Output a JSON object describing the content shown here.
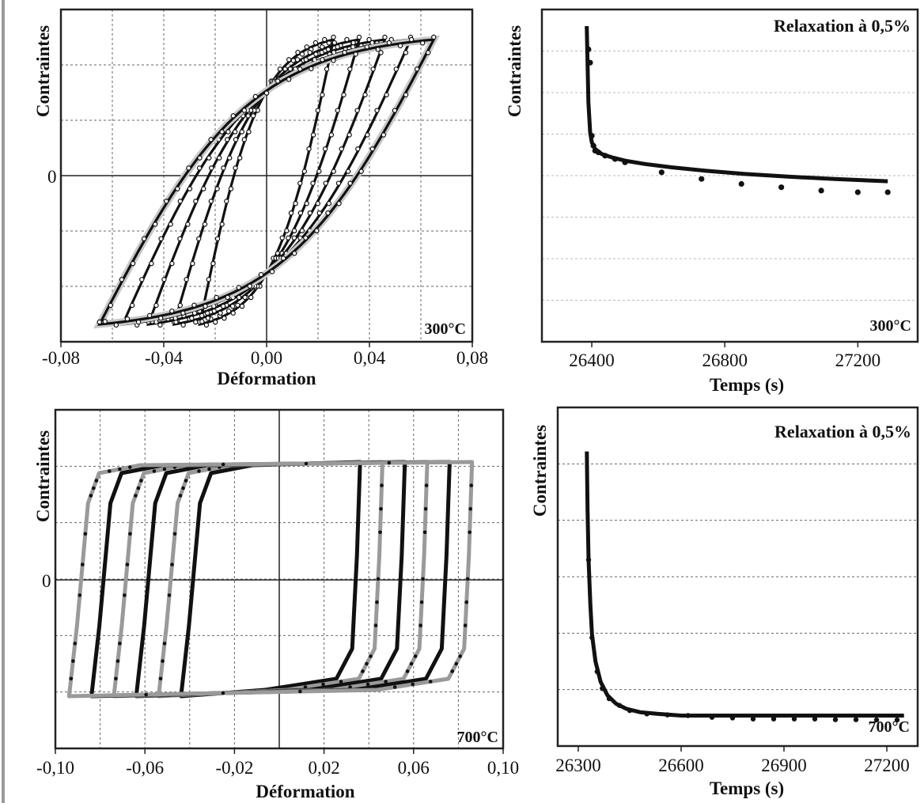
{
  "chart_data": [
    {
      "id": "loops-300",
      "type": "line",
      "xlabel": "Déformation",
      "ylabel": "Contraintes",
      "xlim": [
        -0.08,
        0.08
      ],
      "x_ticks": [
        "-0,08",
        "-0,04",
        "0,00",
        "0,04",
        "0,08"
      ],
      "y_tick_labels": [
        "0"
      ],
      "annotation": "300°C",
      "grid": true,
      "series": [
        {
          "strain_amplitudes": [
            0.026,
            0.036,
            0.046,
            0.056,
            0.065
          ],
          "marker": "open-circle"
        }
      ]
    },
    {
      "id": "relax-300",
      "type": "line",
      "title": "Relaxation à 0,5%",
      "xlabel": "Temps (s)",
      "ylabel": "Contraintes",
      "xlim": [
        26250,
        27380
      ],
      "x_ticks": [
        "26400",
        "26800",
        "27200"
      ],
      "annotation": "300°C",
      "grid": true,
      "series": [
        {
          "type": "line",
          "x": [
            26385,
            26390,
            26395,
            26400,
            26410,
            26430,
            26460,
            26500,
            26560,
            26640,
            26740,
            26860,
            26990,
            27130,
            27290
          ],
          "y": [
            0.95,
            0.72,
            0.63,
            0.6,
            0.58,
            0.565,
            0.555,
            0.545,
            0.535,
            0.525,
            0.515,
            0.505,
            0.497,
            0.49,
            0.483
          ]
        },
        {
          "type": "scatter",
          "x": [
            26390,
            26395,
            26400,
            26405,
            26410,
            26420,
            26440,
            26470,
            26500,
            26610,
            26730,
            26850,
            26970,
            27090,
            27200,
            27290
          ],
          "y": [
            0.88,
            0.84,
            0.62,
            0.59,
            0.575,
            0.57,
            0.56,
            0.55,
            0.54,
            0.51,
            0.49,
            0.475,
            0.465,
            0.455,
            0.45,
            0.45
          ]
        }
      ]
    },
    {
      "id": "loops-700",
      "type": "line",
      "xlabel": "Déformation",
      "ylabel": "Contraintes",
      "xlim": [
        -0.1,
        0.1
      ],
      "x_ticks": [
        "-0,10",
        "-0,06",
        "-0,02",
        "0,02",
        "0,06",
        "0,10"
      ],
      "y_tick_labels": [
        "0"
      ],
      "annotation": "700°C",
      "grid": true,
      "series": [
        {
          "strain_amplitudes": [
            0.04,
            0.05,
            0.06,
            0.07,
            0.08,
            0.09
          ],
          "marker": "filled-dot"
        }
      ]
    },
    {
      "id": "relax-700",
      "type": "line",
      "title": "Relaxation à 0,5%",
      "xlabel": "Temps (s)",
      "ylabel": "Contraintes",
      "xlim": [
        26240,
        27290
      ],
      "x_ticks": [
        "26300",
        "26600",
        "26900",
        "27200"
      ],
      "annotation": "700°C",
      "grid": true,
      "series": [
        {
          "type": "line",
          "x": [
            26325,
            26327,
            26330,
            26335,
            26340,
            26350,
            26365,
            26385,
            26410,
            26440,
            26480,
            26530,
            26600,
            26750,
            26950,
            27250
          ],
          "y": [
            0.87,
            0.7,
            0.55,
            0.42,
            0.33,
            0.25,
            0.19,
            0.15,
            0.125,
            0.11,
            0.1,
            0.095,
            0.09,
            0.09,
            0.09,
            0.09
          ]
        },
        {
          "type": "scatter",
          "x": [
            26330,
            26340,
            26355,
            26370,
            26390,
            26420,
            26450,
            26500,
            26560,
            26620,
            26690,
            26750,
            26810,
            26870,
            26930,
            26990,
            27050,
            27110,
            27170,
            27230
          ],
          "y": [
            0.55,
            0.32,
            0.22,
            0.17,
            0.14,
            0.12,
            0.105,
            0.095,
            0.092,
            0.09,
            0.085,
            0.083,
            0.08,
            0.08,
            0.08,
            0.08,
            0.078,
            0.078,
            0.077,
            0.077
          ]
        }
      ]
    }
  ]
}
